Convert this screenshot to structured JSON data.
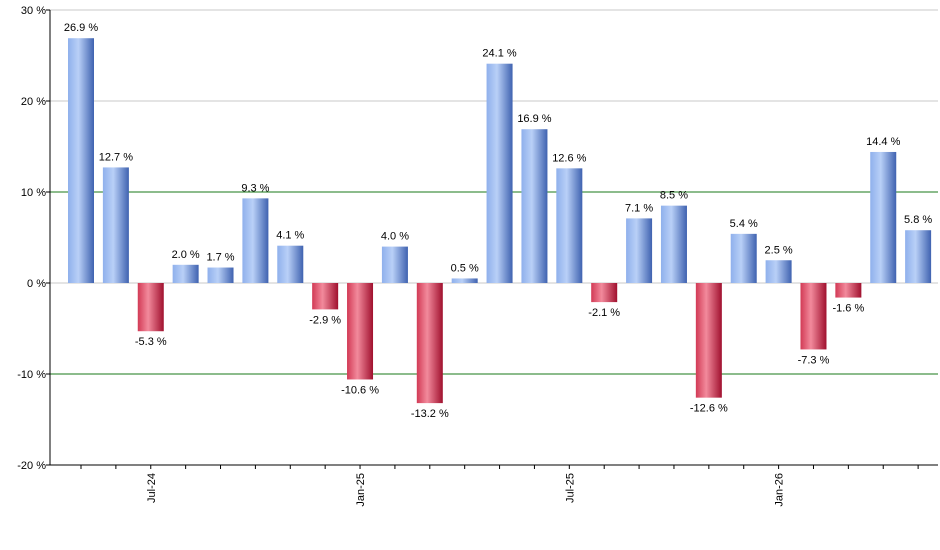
{
  "chart_data": {
    "type": "bar",
    "title": "",
    "xlabel": "",
    "ylabel": "",
    "ylim": [
      -20,
      30
    ],
    "yticks": [
      30,
      20,
      10,
      0,
      -10,
      -20
    ],
    "ytick_labels": [
      "30 %",
      "20 %",
      "10 %",
      "0 %",
      "-10 %",
      "-20 %"
    ],
    "highlight_lines": [
      10,
      -10
    ],
    "grid": "horizontal",
    "values": [
      26.9,
      12.7,
      -5.3,
      2.0,
      1.7,
      9.3,
      4.1,
      -2.9,
      -10.6,
      4.0,
      -13.2,
      0.5,
      24.1,
      16.9,
      12.6,
      -2.1,
      7.1,
      8.5,
      -12.6,
      5.4,
      2.5,
      -7.3,
      -1.6,
      14.4,
      5.8
    ],
    "value_labels": [
      "26.9 %",
      "12.7 %",
      "-5.3 %",
      "2.0 %",
      "1.7 %",
      "9.3 %",
      "4.1 %",
      "-2.9 %",
      "-10.6 %",
      "4.0 %",
      "-13.2 %",
      "0.5 %",
      "24.1 %",
      "16.9 %",
      "12.6 %",
      "-2.1 %",
      "7.1 %",
      "8.5 %",
      "-12.6 %",
      "5.4 %",
      "2.5 %",
      "-7.3 %",
      "-1.6 %",
      "14.4 %",
      "5.8 %"
    ],
    "x_tick_labels": [
      {
        "index": 2,
        "label": "Jul-24"
      },
      {
        "index": 8,
        "label": "Jan-25"
      },
      {
        "index": 14,
        "label": "Jul-25"
      },
      {
        "index": 20,
        "label": "Jan-26"
      }
    ],
    "colors": {
      "positive_light": "#a8c4f2",
      "positive_dark": "#4a6fc0",
      "negative_light": "#f07a8c",
      "negative_dark": "#b01a3a",
      "grid": "#c8c8c8",
      "highlight_line": "#1a7a1a",
      "axis": "#000000"
    }
  }
}
